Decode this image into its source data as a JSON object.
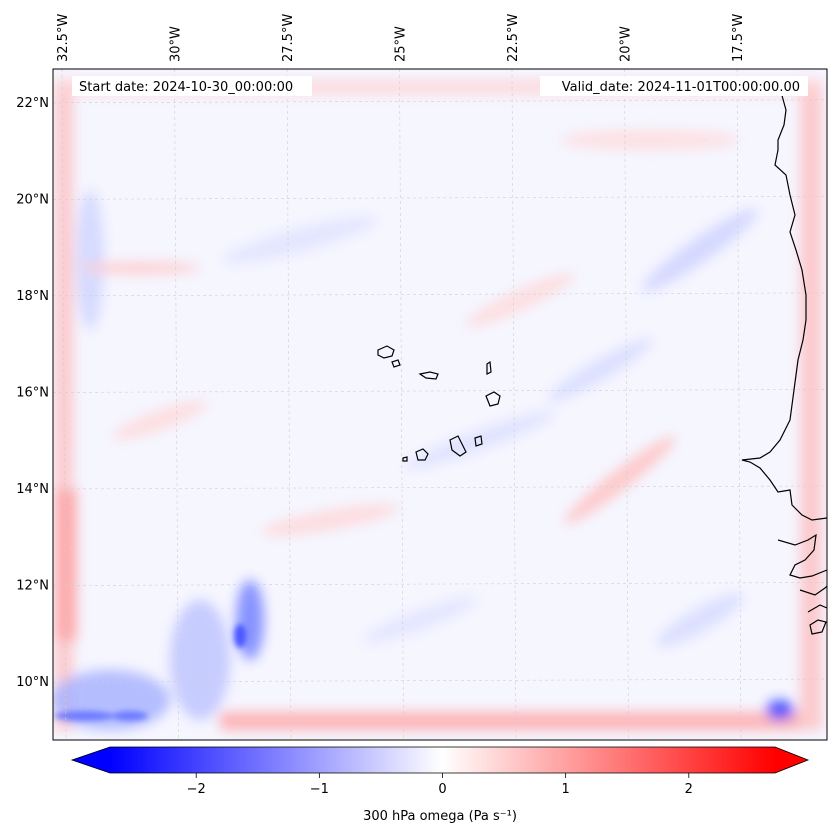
{
  "header": {
    "start_date": "Start date: 2024-10-30_00:00:00",
    "valid_date": "Valid_date: 2024-11-01T00:00:00.00"
  },
  "map": {
    "extent": {
      "lon": [
        -32.7,
        -15.5
      ],
      "lat": [
        8.8,
        22.7
      ]
    },
    "lon_ticks": [
      {
        "value": -32.5,
        "label": "32.5°W"
      },
      {
        "value": -30,
        "label": "30°W"
      },
      {
        "value": -27.5,
        "label": "27.5°W"
      },
      {
        "value": -25,
        "label": "25°W"
      },
      {
        "value": -22.5,
        "label": "22.5°W"
      },
      {
        "value": -20,
        "label": "20°W"
      },
      {
        "value": -17.5,
        "label": "17.5°W"
      }
    ],
    "lat_ticks": [
      {
        "value": 22,
        "label": "22°N"
      },
      {
        "value": 20,
        "label": "20°N"
      },
      {
        "value": 18,
        "label": "18°N"
      },
      {
        "value": 16,
        "label": "16°N"
      },
      {
        "value": 14,
        "label": "14°N"
      },
      {
        "value": 12,
        "label": "12°N"
      },
      {
        "value": 10,
        "label": "10°N"
      }
    ],
    "gridlines": true,
    "features": [
      "Cape Verde islands",
      "West African coastline"
    ]
  },
  "colorbar": {
    "label": "300 hPa omega (Pa s⁻¹)",
    "range": [
      -2.7,
      2.7
    ],
    "ticks": [
      {
        "value": -2,
        "label": "−2"
      },
      {
        "value": -1,
        "label": "−1"
      },
      {
        "value": 0,
        "label": "0"
      },
      {
        "value": 1,
        "label": "1"
      },
      {
        "value": 2,
        "label": "2"
      }
    ],
    "colormap": "bwr",
    "color_min": "#0000ff",
    "color_mid": "#ffffff",
    "color_max": "#ff0000",
    "extend": "both"
  }
}
